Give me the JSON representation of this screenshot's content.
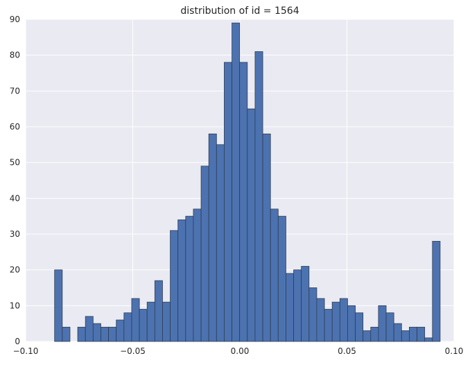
{
  "chart_data": {
    "type": "bar",
    "title": "distribution of id = 1564",
    "xlabel": "",
    "ylabel": "",
    "xlim": [
      -0.1,
      0.1
    ],
    "ylim": [
      0,
      90
    ],
    "grid": true,
    "bar_color": "#4c72b0",
    "background_color": "#eaeaf2",
    "xticks": [
      -0.1,
      -0.05,
      0.0,
      0.05,
      0.1
    ],
    "xtick_labels": [
      "−0.10",
      "−0.05",
      "0.00",
      "0.05",
      "0.10"
    ],
    "yticks": [
      0,
      10,
      20,
      30,
      40,
      50,
      60,
      70,
      80,
      90
    ],
    "ytick_labels": [
      "0",
      "10",
      "20",
      "30",
      "40",
      "50",
      "60",
      "70",
      "80",
      "90"
    ],
    "bins": {
      "start": -0.0865,
      "width": 0.0036,
      "counts": [
        20,
        4,
        0,
        4,
        7,
        5,
        4,
        4,
        6,
        8,
        12,
        9,
        11,
        17,
        11,
        31,
        34,
        35,
        37,
        49,
        58,
        55,
        78,
        89,
        78,
        65,
        81,
        58,
        37,
        35,
        19,
        20,
        21,
        15,
        12,
        9,
        11,
        12,
        10,
        8,
        3,
        4,
        10,
        8,
        5,
        3,
        4,
        4,
        1,
        28
      ]
    }
  }
}
